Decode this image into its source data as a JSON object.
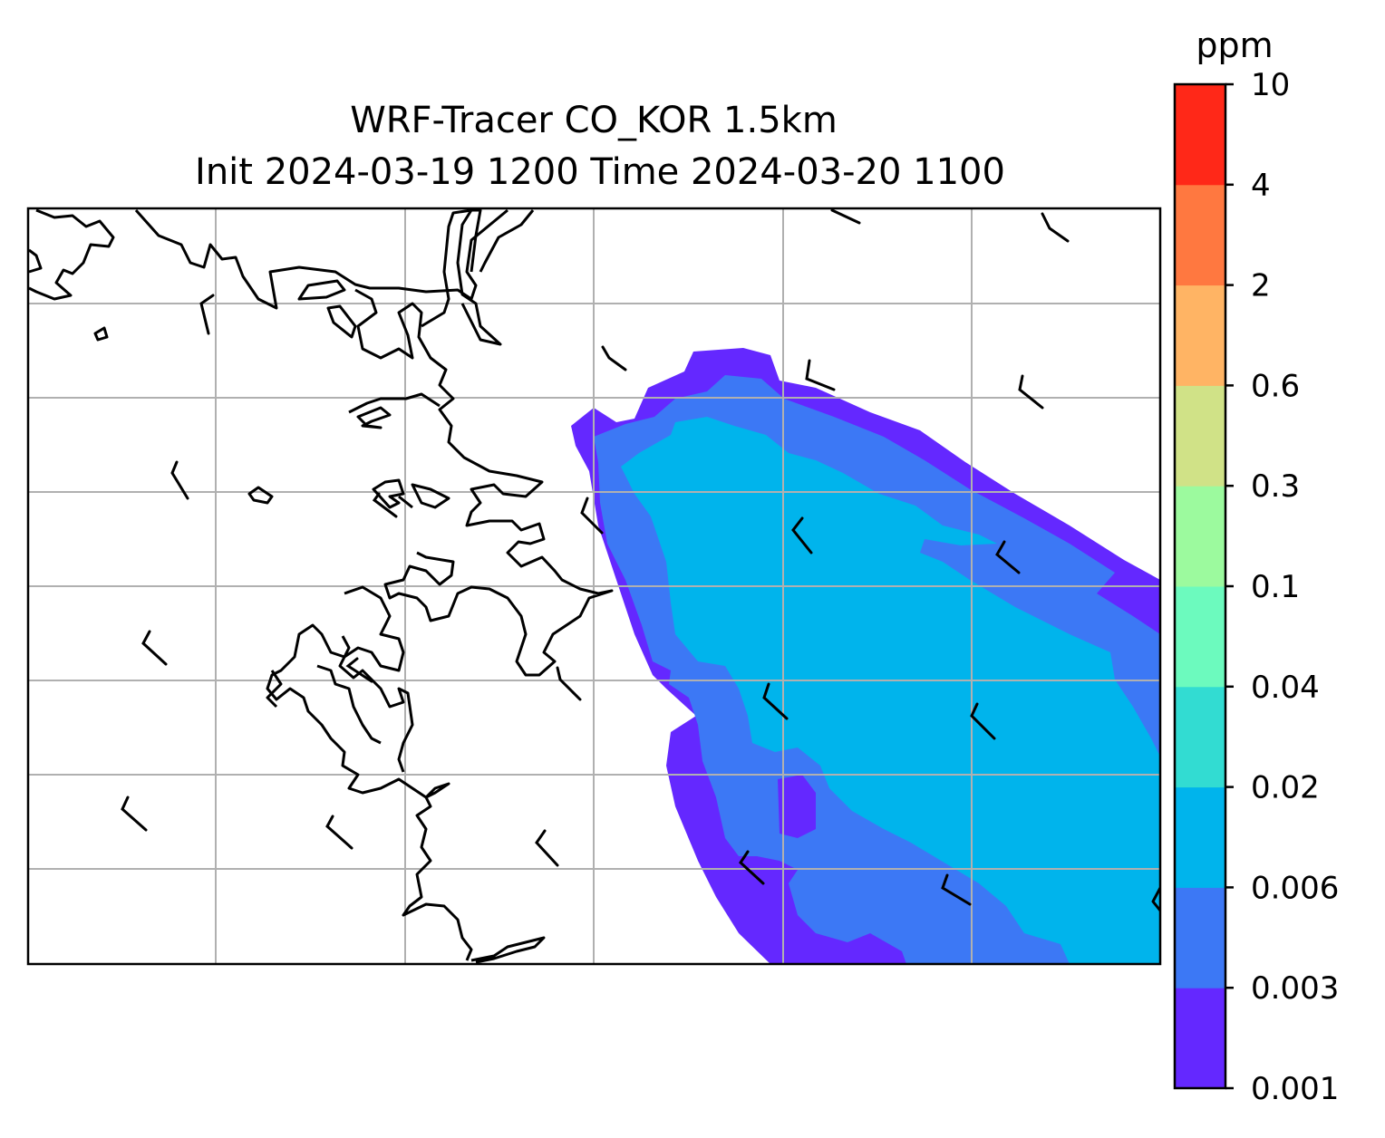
{
  "figure": {
    "title_line1": "WRF-Tracer CO_KOR 1.5km",
    "title_line2": "Init 2024-03-19 1200 Time 2024-03-20 1100"
  },
  "colorbar": {
    "unit": "ppm",
    "levels": [
      "0.001",
      "0.003",
      "0.006",
      "0.02",
      "0.04",
      "0.1",
      "0.3",
      "0.6",
      "2",
      "4",
      "10"
    ],
    "colors": [
      "#6428ff",
      "#3c78f5",
      "#00b4ec",
      "#32dcd2",
      "#6cfabe",
      "#9cfa9e",
      "#d0e287",
      "#ffb464",
      "#ff7840",
      "#ff2818"
    ]
  },
  "map": {
    "gridlines": true,
    "gridline_color": "#b0b0b0",
    "coastline_color": "#000000",
    "plume_levels_shown": [
      "0.001-0.003",
      "0.003-0.006",
      "0.006-0.02"
    ],
    "wind_barbs": "black half-barb wind symbols over the domain"
  }
}
